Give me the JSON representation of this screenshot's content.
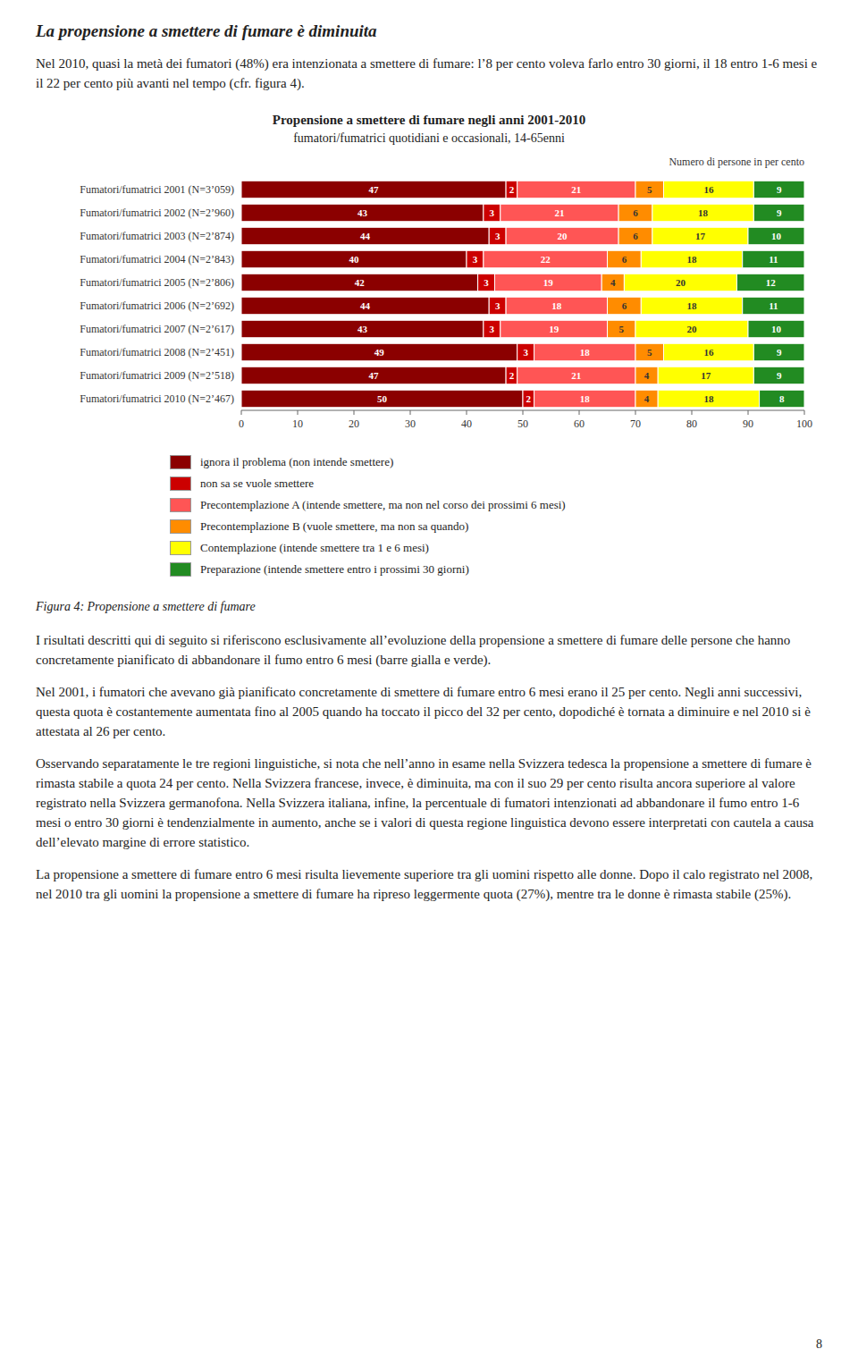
{
  "page_heading": "La propensione a smettere di fumare è diminuita",
  "intro_text": "Nel 2010, quasi la metà dei fumatori (48%) era intenzionata a smettere di fumare: l’8 per cento voleva farlo entro 30 giorni, il 18 entro 1-6 mesi e il 22 per cento più avanti nel tempo (cfr. figura 4).",
  "chart_data": {
    "type": "bar",
    "orientation": "horizontal",
    "stacked": true,
    "data_labels": true,
    "grid": false,
    "legend": "bottom",
    "title": "Propensione a smettere di fumare negli anni 2001-2010",
    "subtitle": "fumatori/fumatrici quotidiani e occasionali, 14-65enni",
    "xlabel": "Numero di persone in per cento",
    "categories": [
      "Fumatori/fumatrici 2001 (N=3’059)",
      "Fumatori/fumatrici 2002 (N=2’960)",
      "Fumatori/fumatrici 2003 (N=2’874)",
      "Fumatori/fumatrici 2004 (N=2’843)",
      "Fumatori/fumatrici 2005 (N=2’806)",
      "Fumatori/fumatrici 2006 (N=2’692)",
      "Fumatori/fumatrici 2007 (N=2’617)",
      "Fumatori/fumatrici 2008 (N=2’451)",
      "Fumatori/fumatrici 2009 (N=2’518)",
      "Fumatori/fumatrici 2010 (N=2’467)"
    ],
    "series": [
      {
        "name": "ignora il problema (non intende smettere)",
        "color": "#8B0000",
        "values": [
          47,
          43,
          44,
          40,
          42,
          44,
          43,
          49,
          47,
          50
        ]
      },
      {
        "name": "non sa se vuole smettere",
        "color": "#CC0000",
        "values": [
          2,
          3,
          3,
          3,
          3,
          3,
          3,
          3,
          2,
          2
        ]
      },
      {
        "name": "Precontemplazione A (intende smettere, ma non nel corso dei prossimi 6 mesi)",
        "color": "#FF5555",
        "values": [
          21,
          21,
          20,
          22,
          19,
          18,
          19,
          18,
          21,
          18
        ]
      },
      {
        "name": "Precontemplazione B (vuole smettere, ma non sa quando)",
        "color": "#FF8C00",
        "values": [
          5,
          6,
          6,
          6,
          4,
          6,
          5,
          5,
          4,
          4
        ]
      },
      {
        "name": "Contemplazione (intende smettere tra 1 e 6 mesi)",
        "color": "#FFFF00",
        "values": [
          16,
          18,
          17,
          18,
          20,
          18,
          20,
          16,
          17,
          18
        ]
      },
      {
        "name": "Preparazione (intende smettere entro i prossimi 30 giorni)",
        "color": "#228B22",
        "values": [
          9,
          9,
          10,
          11,
          12,
          11,
          10,
          9,
          9,
          8
        ]
      }
    ],
    "xlim": [
      0,
      100
    ],
    "xticks": [
      0,
      10,
      20,
      30,
      40,
      50,
      60,
      70,
      80,
      90,
      100
    ]
  },
  "figure_caption": "Figura 4: Propensione a smettere di fumare",
  "body_paragraphs": [
    "I risultati descritti qui di seguito si riferiscono esclusivamente all’evoluzione della propensione a smettere di fumare delle persone che hanno concretamente pianificato di abbandonare il fumo entro 6 mesi (barre gialla e verde).",
    "Nel 2001, i fumatori che avevano già pianificato concretamente di smettere di fumare entro 6 mesi erano il 25 per cento. Negli anni successivi, questa quota è costantemente aumentata fino al 2005 quando ha toccato il picco del 32 per cento, dopodiché è tornata a diminuire e nel 2010 si è attestata al 26 per cento.",
    "Osservando separatamente le tre regioni linguistiche, si nota che nell’anno in esame nella Svizzera tedesca la propensione a smettere di fumare è rimasta stabile a quota 24 per cento. Nella Svizzera francese, invece, è diminuita, ma con il suo 29 per cento risulta ancora superiore al valore registrato nella Svizzera germanofona. Nella Svizzera italiana, infine, la percentuale di fumatori intenzionati ad abbandonare il fumo entro 1-6 mesi o entro 30 giorni è tendenzialmente in aumento, anche se i valori di questa regione linguistica devono essere interpretati con cautela a causa dell’elevato margine di errore statistico.",
    "La propensione a smettere di fumare entro 6 mesi risulta lievemente superiore tra gli uomini rispetto alle donne. Dopo il calo registrato nel 2008, nel 2010 tra gli uomini la propensione a smettere di fumare ha ripreso leggermente quota (27%), mentre tra le donne è rimasta stabile (25%)."
  ],
  "page_number": "8"
}
